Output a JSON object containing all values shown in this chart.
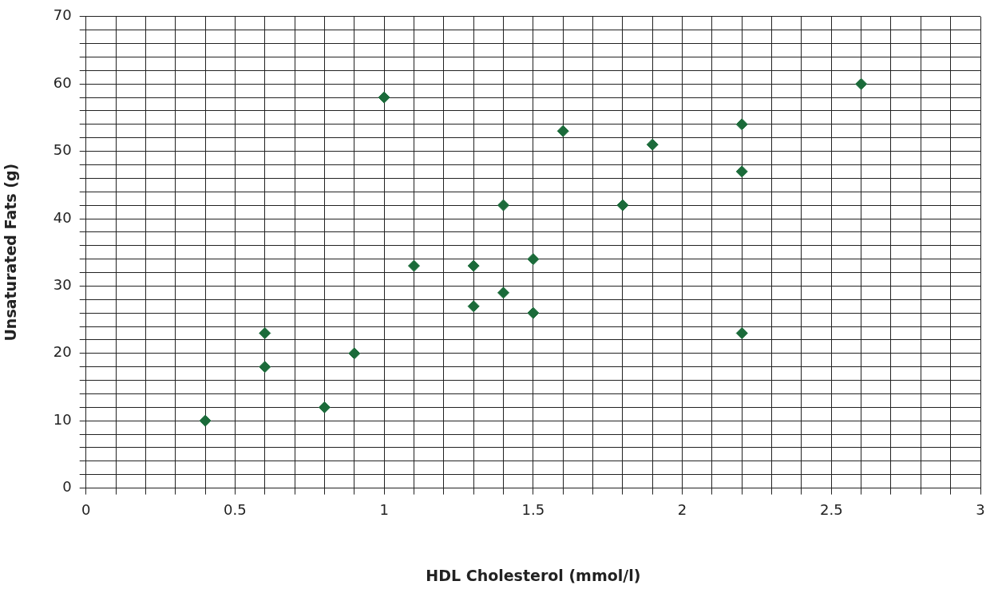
{
  "chart_data": {
    "type": "scatter",
    "xlabel": "HDL Cholesterol (mmol/l)",
    "ylabel": "Unsaturated Fats (g)",
    "x": [
      0.4,
      0.6,
      0.6,
      0.8,
      0.9,
      1.0,
      1.1,
      1.3,
      1.3,
      1.4,
      1.4,
      1.5,
      1.5,
      1.6,
      1.8,
      1.9,
      2.2,
      2.2,
      2.2,
      2.6
    ],
    "series": [
      {
        "color": "#1b6b3a",
        "values": [
          10,
          23,
          18,
          12,
          20,
          58,
          33,
          33,
          27,
          42,
          29,
          34,
          26,
          53,
          42,
          51,
          54,
          47,
          23,
          60
        ]
      }
    ],
    "xlim": [
      0,
      3
    ],
    "xticks": [
      0,
      {
        "value": 0.1,
        "label": null
      },
      {
        "value": 0.2,
        "label": null
      },
      {
        "value": 0.3,
        "label": null
      },
      {
        "value": 0.4,
        "label": null
      },
      0.5,
      {
        "value": 0.6,
        "label": null
      },
      {
        "value": 0.7,
        "label": null
      },
      {
        "value": 0.8,
        "label": null
      },
      {
        "value": 0.9,
        "label": null
      },
      1,
      {
        "value": 1.1,
        "label": null
      },
      {
        "value": 1.2,
        "label": null
      },
      {
        "value": 1.3,
        "label": null
      },
      {
        "value": 1.4,
        "label": null
      },
      1.5,
      {
        "value": 1.6,
        "label": null
      },
      {
        "value": 1.7,
        "label": null
      },
      {
        "value": 1.8,
        "label": null
      },
      {
        "value": 1.9,
        "label": null
      },
      2,
      {
        "value": 2.1,
        "label": null
      },
      {
        "value": 2.2,
        "label": null
      },
      {
        "value": 2.3,
        "label": null
      },
      {
        "value": 2.4,
        "label": null
      },
      2.5,
      {
        "value": 2.6,
        "label": null
      },
      {
        "value": 2.7,
        "label": null
      },
      {
        "value": 2.8,
        "label": null
      },
      {
        "value": 2.9,
        "label": null
      },
      3
    ],
    "ylim": [
      0,
      70
    ],
    "yticks": [
      0,
      {
        "value": 2,
        "label": null
      },
      {
        "value": 4,
        "label": null
      },
      {
        "value": 6,
        "label": null
      },
      {
        "value": 8,
        "label": null
      },
      10,
      {
        "value": 12,
        "label": null
      },
      {
        "value": 14,
        "label": null
      },
      {
        "value": 16,
        "label": null
      },
      {
        "value": 18,
        "label": null
      },
      20,
      {
        "value": 22,
        "label": null
      },
      {
        "value": 24,
        "label": null
      },
      {
        "value": 26,
        "label": null
      },
      {
        "value": 28,
        "label": null
      },
      30,
      {
        "value": 32,
        "label": null
      },
      {
        "value": 34,
        "label": null
      },
      {
        "value": 36,
        "label": null
      },
      {
        "value": 38,
        "label": null
      },
      40,
      {
        "value": 42,
        "label": null
      },
      {
        "value": 44,
        "label": null
      },
      {
        "value": 46,
        "label": null
      },
      {
        "value": 48,
        "label": null
      },
      50,
      {
        "value": 52,
        "label": null
      },
      {
        "value": 54,
        "label": null
      },
      {
        "value": 56,
        "label": null
      },
      {
        "value": 58,
        "label": null
      },
      60,
      {
        "value": 62,
        "label": null
      },
      {
        "value": 64,
        "label": null
      },
      {
        "value": 66,
        "label": null
      },
      {
        "value": 68,
        "label": null
      },
      70
    ],
    "grid": true,
    "marker": "diamond",
    "legend": false
  }
}
